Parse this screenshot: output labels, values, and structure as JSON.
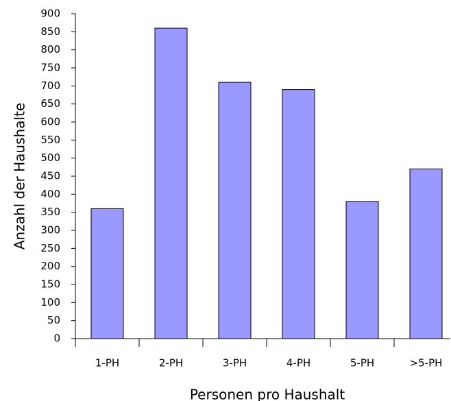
{
  "chart_data": {
    "type": "bar",
    "x_label": "Personen pro Haushalt",
    "y_label": "Anzahl der Haushalte",
    "categories": [
      "1-PH",
      "2-PH",
      "3-PH",
      "4-PH",
      "5-PH",
      ">5-PH"
    ],
    "values": [
      360,
      860,
      710,
      690,
      380,
      470
    ],
    "color": "#9999ff",
    "ylim": [
      0,
      900
    ],
    "yticks": [
      0,
      50,
      100,
      150,
      200,
      250,
      300,
      350,
      400,
      450,
      500,
      550,
      600,
      650,
      700,
      750,
      800,
      850,
      900
    ],
    "grid": false
  }
}
